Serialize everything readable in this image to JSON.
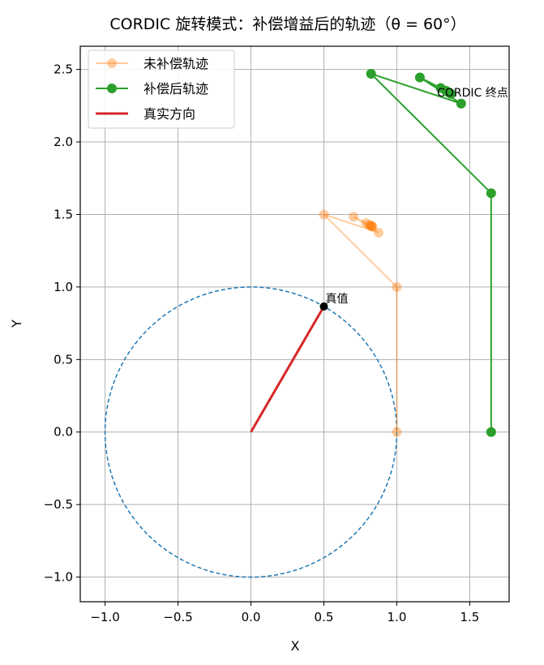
{
  "chart_data": {
    "type": "line",
    "title": "CORDIC 旋转模式：补偿增益后的轨迹（θ = 60°）",
    "xlabel": "X",
    "ylabel": "Y",
    "xlim": [
      -1.17,
      1.77
    ],
    "ylim": [
      -1.17,
      2.66
    ],
    "xticks": [
      -1.0,
      -0.5,
      0.0,
      0.5,
      1.0,
      1.5
    ],
    "yticks": [
      -1.0,
      -0.5,
      0.0,
      0.5,
      1.0,
      1.5,
      2.0,
      2.5
    ],
    "grid": true,
    "legend_position": "upper-left",
    "series": [
      {
        "name": "未补偿轨迹",
        "color": "#ff7f0e",
        "opacity": 0.4,
        "marker": "circle",
        "x": [
          1.0,
          1.0,
          0.5,
          0.875,
          0.7031,
          0.7899,
          0.8333,
          0.8116,
          0.8224,
          0.8278,
          0.8251
        ],
        "y": [
          0.0,
          1.0,
          1.5,
          1.375,
          1.4844,
          1.4404,
          1.4158,
          1.4288,
          1.4225,
          1.4193,
          1.4209
        ]
      },
      {
        "name": "补偿后轨迹",
        "color": "#2ca02c",
        "opacity": 1.0,
        "marker": "circle",
        "x": [
          1.6468,
          1.6468,
          0.8234,
          1.441,
          1.158,
          1.301,
          1.372,
          1.337,
          1.354,
          1.363,
          1.359
        ],
        "y": [
          0.0,
          1.6468,
          2.4702,
          2.2644,
          2.4446,
          2.3721,
          2.3316,
          2.353,
          2.3426,
          2.3374,
          2.34
        ]
      },
      {
        "name": "真实方向",
        "color": "#d62728",
        "x": [
          0.0,
          0.5
        ],
        "y": [
          0.0,
          0.866
        ]
      }
    ],
    "unit_circle": {
      "color": "#1f77b4",
      "style": "dashed",
      "radius": 1.0
    },
    "annotations": [
      {
        "text": "真值",
        "x": 0.5,
        "y": 0.866
      },
      {
        "text": "CORDIC 终点",
        "x": 1.359,
        "y": 2.34
      }
    ]
  }
}
